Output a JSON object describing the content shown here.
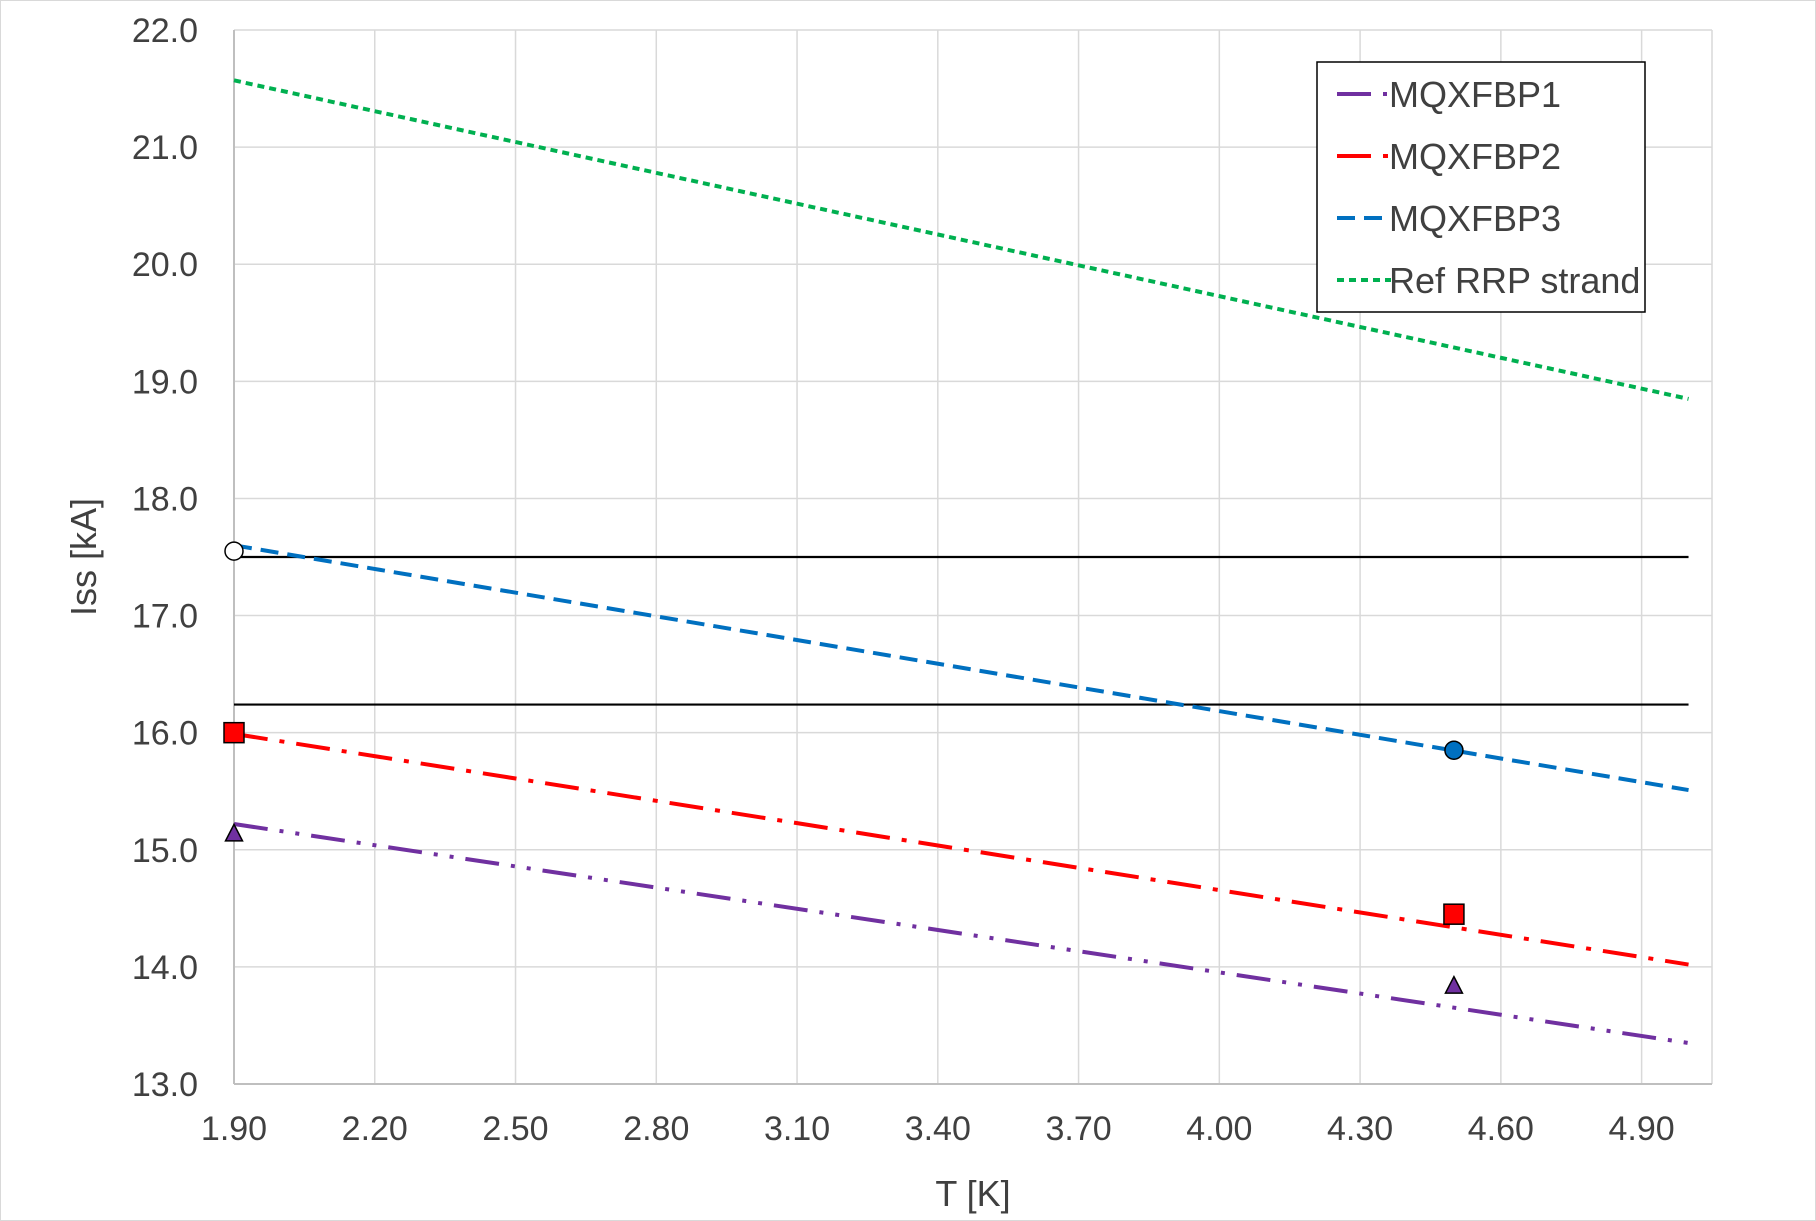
{
  "chart_data": {
    "type": "line",
    "title": "",
    "xlabel": "T [K]",
    "ylabel": "Iss [kA]",
    "xlim": [
      1.9,
      5.05
    ],
    "ylim": [
      13.0,
      22.0
    ],
    "x_ticks": [
      "1.90",
      "2.20",
      "2.50",
      "2.80",
      "3.10",
      "3.40",
      "3.70",
      "4.00",
      "4.30",
      "4.60",
      "4.90"
    ],
    "y_ticks": [
      "13.0",
      "14.0",
      "15.0",
      "16.0",
      "17.0",
      "18.0",
      "19.0",
      "20.0",
      "21.0",
      "22.0"
    ],
    "grid": true,
    "legend_position": "top-right",
    "series": [
      {
        "name": "MQXFBP1",
        "color": "#7030a0",
        "dash": "dash-dot-dot",
        "x": [
          1.9,
          5.0
        ],
        "y": [
          15.22,
          13.35
        ]
      },
      {
        "name": "MQXFBP2",
        "color": "#ff0000",
        "dash": "dash-dot",
        "x": [
          1.9,
          5.0
        ],
        "y": [
          15.99,
          14.02
        ]
      },
      {
        "name": "MQXFBP3",
        "color": "#0070c0",
        "dash": "dash",
        "x": [
          1.9,
          5.0
        ],
        "y": [
          17.6,
          15.51
        ]
      },
      {
        "name": "Ref RRP strand",
        "color": "#00b050",
        "dash": "short-dash",
        "x": [
          1.9,
          5.0
        ],
        "y": [
          21.57,
          18.85
        ]
      }
    ],
    "reference_lines": [
      {
        "y": 17.5,
        "x": [
          1.9,
          5.0
        ],
        "color": "#000000"
      },
      {
        "y": 16.24,
        "x": [
          1.9,
          5.0
        ],
        "color": "#000000"
      }
    ],
    "markers": [
      {
        "shape": "circle",
        "fill": "#ffffff",
        "x": 1.9,
        "y": 17.55
      },
      {
        "shape": "circle",
        "fill": "#0070c0",
        "x": 4.5,
        "y": 15.85
      },
      {
        "shape": "square",
        "fill": "#ff0000",
        "x": 1.9,
        "y": 16.0
      },
      {
        "shape": "square",
        "fill": "#ff0000",
        "x": 4.5,
        "y": 14.45
      },
      {
        "shape": "triangle",
        "fill": "#7030a0",
        "x": 1.9,
        "y": 15.14
      },
      {
        "shape": "triangle",
        "fill": "#7030a0",
        "x": 4.5,
        "y": 13.84
      }
    ]
  }
}
